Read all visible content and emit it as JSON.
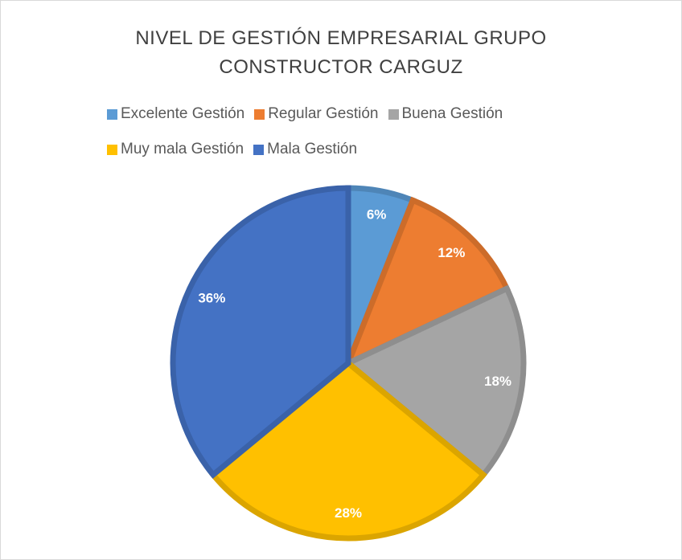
{
  "chart_data": {
    "type": "pie",
    "title": "NIVEL DE GESTIÓN EMPRESARIAL GRUPO CONSTRUCTOR CARGUZ",
    "categories": [
      "Excelente Gestión",
      "Regular Gestión",
      "Buena Gestión",
      "Muy mala Gestión",
      "Mala Gestión"
    ],
    "values": [
      6,
      12,
      18,
      28,
      36
    ],
    "value_labels": [
      "6%",
      "12%",
      "18%",
      "28%",
      "36%"
    ],
    "colors": [
      "#5b9bd5",
      "#ed7d31",
      "#a5a5a5",
      "#ffc000",
      "#4472c4"
    ],
    "legend": "top"
  }
}
